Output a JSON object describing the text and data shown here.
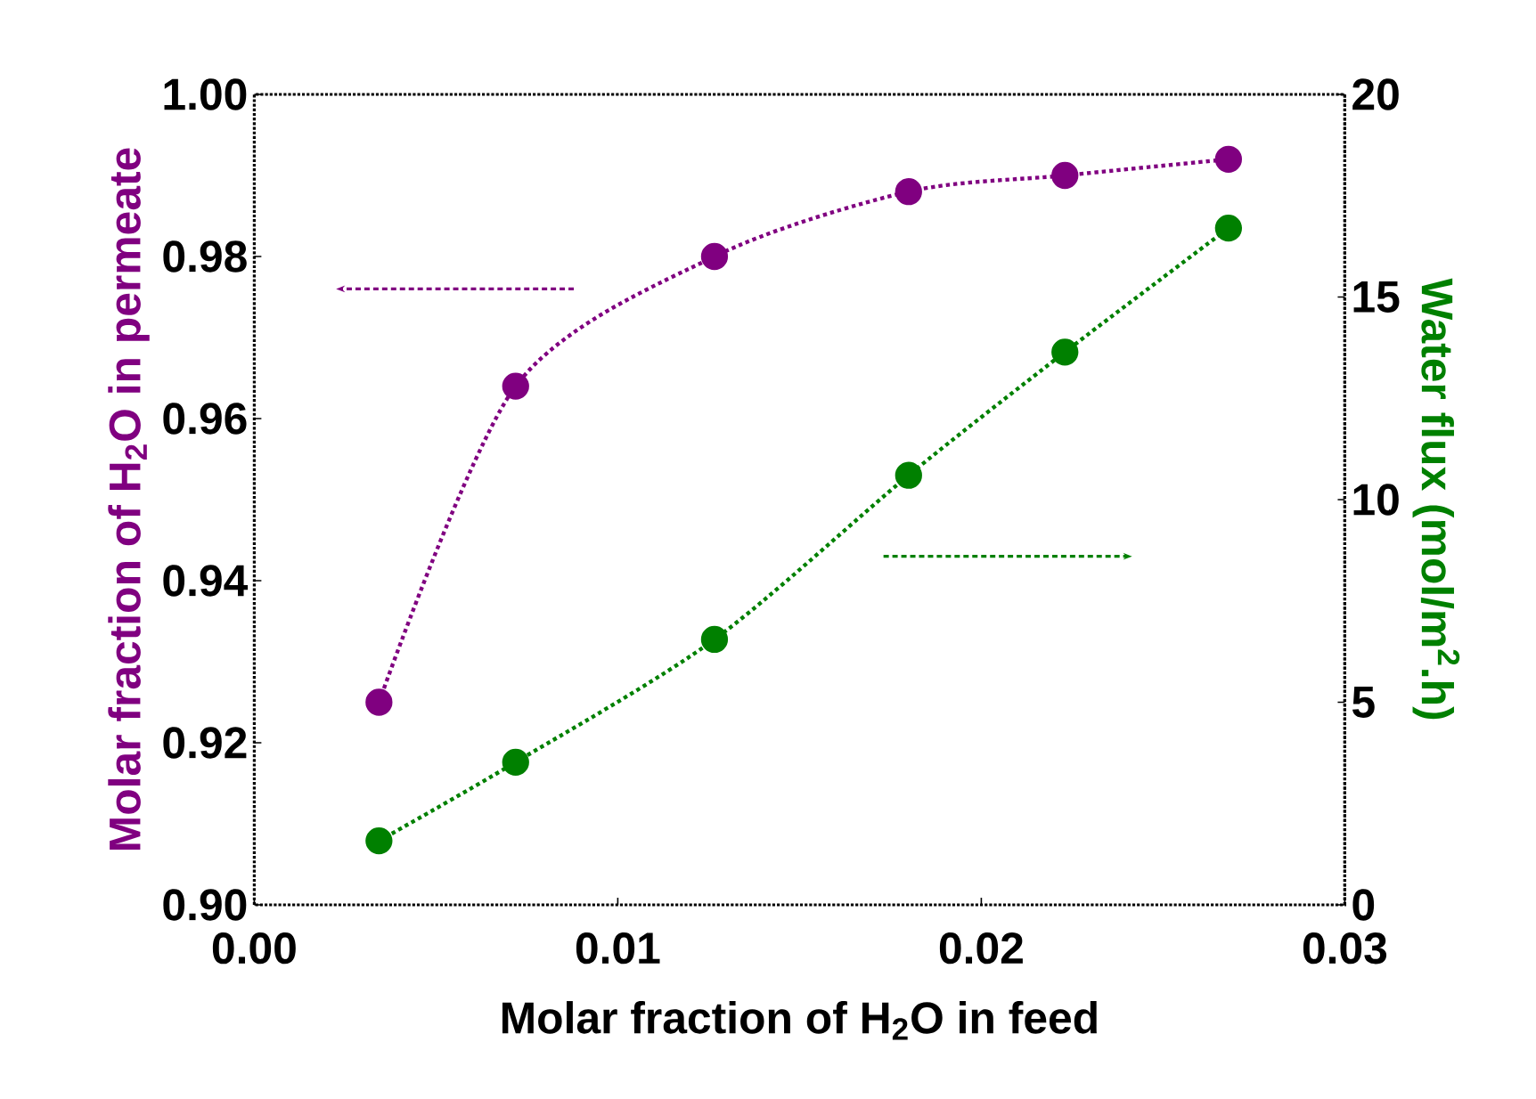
{
  "chart_data": {
    "type": "line",
    "xlabel": "Molar fraction of H$_{2}$O in feed",
    "ylabel": "Molar fraction of H$_{2}$O in permeate",
    "y2label": "Water flux (mol/m$^{2}$.h)",
    "x": [
      0.00343,
      0.00719,
      0.01266,
      0.018,
      0.0223,
      0.0268
    ],
    "series": [
      {
        "color": "#800080",
        "values": [
          0.925,
          0.964,
          0.98,
          0.988,
          0.99,
          0.992
        ]
      },
      {
        "color": "#008000",
        "axis": "y2",
        "values": [
          1.58,
          3.52,
          6.55,
          10.6,
          13.64,
          16.7
        ]
      }
    ],
    "xlim": [
      0,
      0.03
    ],
    "xticks": [
      {
        "value": 0,
        "label": "0.00"
      },
      {
        "value": 0.01,
        "label": "0.01"
      },
      {
        "value": 0.02,
        "label": "0.02"
      },
      {
        "value": 0.03,
        "label": "0.03"
      }
    ],
    "ylim": [
      0.9,
      1.0
    ],
    "yticks": [
      {
        "value": 0.9,
        "label": "0.90"
      },
      {
        "value": 0.92,
        "label": "0.92"
      },
      {
        "value": 0.94,
        "label": "0.94"
      },
      {
        "value": 0.96,
        "label": "0.96"
      },
      {
        "value": 0.98,
        "label": "0.98"
      },
      {
        "value": 1.0,
        "label": "1.00"
      }
    ],
    "y2lim": [
      0,
      20
    ],
    "y2ticks": [
      0,
      5,
      10,
      15,
      20
    ],
    "marker": "circle",
    "line_style": "dotted",
    "grid": false
  }
}
